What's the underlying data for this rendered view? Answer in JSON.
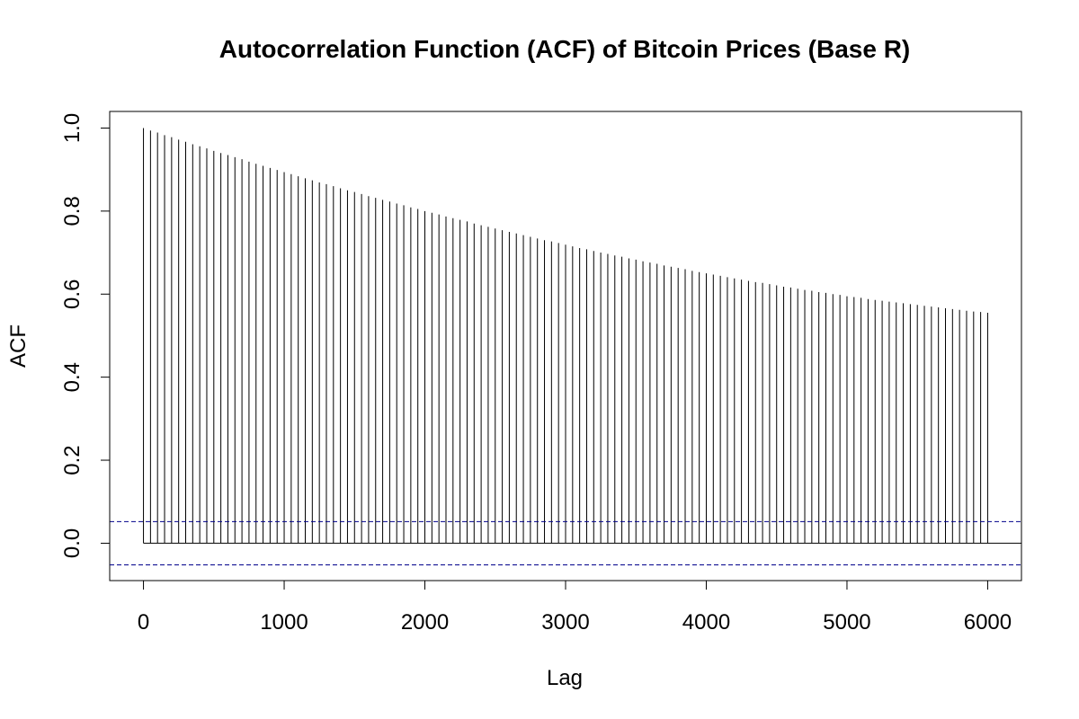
{
  "chart_data": {
    "type": "bar",
    "title": "Autocorrelation Function (ACF) of Bitcoin Prices (Base R)",
    "xlabel": "Lag",
    "ylabel": "ACF",
    "xlim": [
      -240,
      6240
    ],
    "ylim": [
      -0.09,
      1.04
    ],
    "x_ticks": [
      "0",
      "1000",
      "2000",
      "3000",
      "4000",
      "5000",
      "6000"
    ],
    "y_ticks": [
      "0.0",
      "0.2",
      "0.4",
      "0.6",
      "0.8",
      "1.0"
    ],
    "lags": [
      0,
      50,
      100,
      150,
      200,
      250,
      300,
      350,
      400,
      450,
      500,
      550,
      600,
      650,
      700,
      750,
      800,
      850,
      900,
      950,
      1000,
      1050,
      1100,
      1150,
      1200,
      1250,
      1300,
      1350,
      1400,
      1450,
      1500,
      1550,
      1600,
      1650,
      1700,
      1750,
      1800,
      1850,
      1900,
      1950,
      2000,
      2050,
      2100,
      2150,
      2200,
      2250,
      2300,
      2350,
      2400,
      2450,
      2500,
      2550,
      2600,
      2650,
      2700,
      2750,
      2800,
      2850,
      2900,
      2950,
      3000,
      3050,
      3100,
      3150,
      3200,
      3250,
      3300,
      3350,
      3400,
      3450,
      3500,
      3550,
      3600,
      3650,
      3700,
      3750,
      3800,
      3850,
      3900,
      3950,
      4000,
      4050,
      4100,
      4150,
      4200,
      4250,
      4300,
      4350,
      4400,
      4450,
      4500,
      4550,
      4600,
      4650,
      4700,
      4750,
      4800,
      4850,
      4900,
      4950,
      5000,
      5050,
      5100,
      5150,
      5200,
      5250,
      5300,
      5350,
      5400,
      5450,
      5500,
      5550,
      5600,
      5650,
      5700,
      5750,
      5800,
      5850,
      5900,
      5950,
      6000
    ],
    "values": [
      1.0,
      0.994,
      0.989,
      0.983,
      0.978,
      0.972,
      0.967,
      0.961,
      0.956,
      0.951,
      0.945,
      0.94,
      0.935,
      0.93,
      0.925,
      0.919,
      0.914,
      0.909,
      0.904,
      0.899,
      0.894,
      0.889,
      0.884,
      0.879,
      0.874,
      0.869,
      0.865,
      0.86,
      0.855,
      0.85,
      0.846,
      0.841,
      0.836,
      0.832,
      0.827,
      0.823,
      0.818,
      0.814,
      0.809,
      0.805,
      0.8,
      0.796,
      0.792,
      0.787,
      0.783,
      0.779,
      0.775,
      0.77,
      0.766,
      0.762,
      0.758,
      0.754,
      0.75,
      0.746,
      0.742,
      0.738,
      0.734,
      0.73,
      0.727,
      0.723,
      0.719,
      0.715,
      0.711,
      0.708,
      0.704,
      0.7,
      0.697,
      0.693,
      0.69,
      0.686,
      0.683,
      0.679,
      0.676,
      0.673,
      0.669,
      0.666,
      0.663,
      0.66,
      0.656,
      0.653,
      0.65,
      0.647,
      0.644,
      0.641,
      0.638,
      0.635,
      0.632,
      0.629,
      0.627,
      0.624,
      0.621,
      0.618,
      0.616,
      0.613,
      0.61,
      0.608,
      0.605,
      0.603,
      0.6,
      0.598,
      0.595,
      0.593,
      0.591,
      0.588,
      0.586,
      0.584,
      0.582,
      0.58,
      0.578,
      0.576,
      0.574,
      0.572,
      0.57,
      0.568,
      0.566,
      0.564,
      0.562,
      0.56,
      0.558,
      0.557,
      0.555
    ],
    "confidence_bound": 0.052,
    "confidence_color": "#00008B",
    "line_color": "#000000",
    "grid": false,
    "legend": "none"
  }
}
